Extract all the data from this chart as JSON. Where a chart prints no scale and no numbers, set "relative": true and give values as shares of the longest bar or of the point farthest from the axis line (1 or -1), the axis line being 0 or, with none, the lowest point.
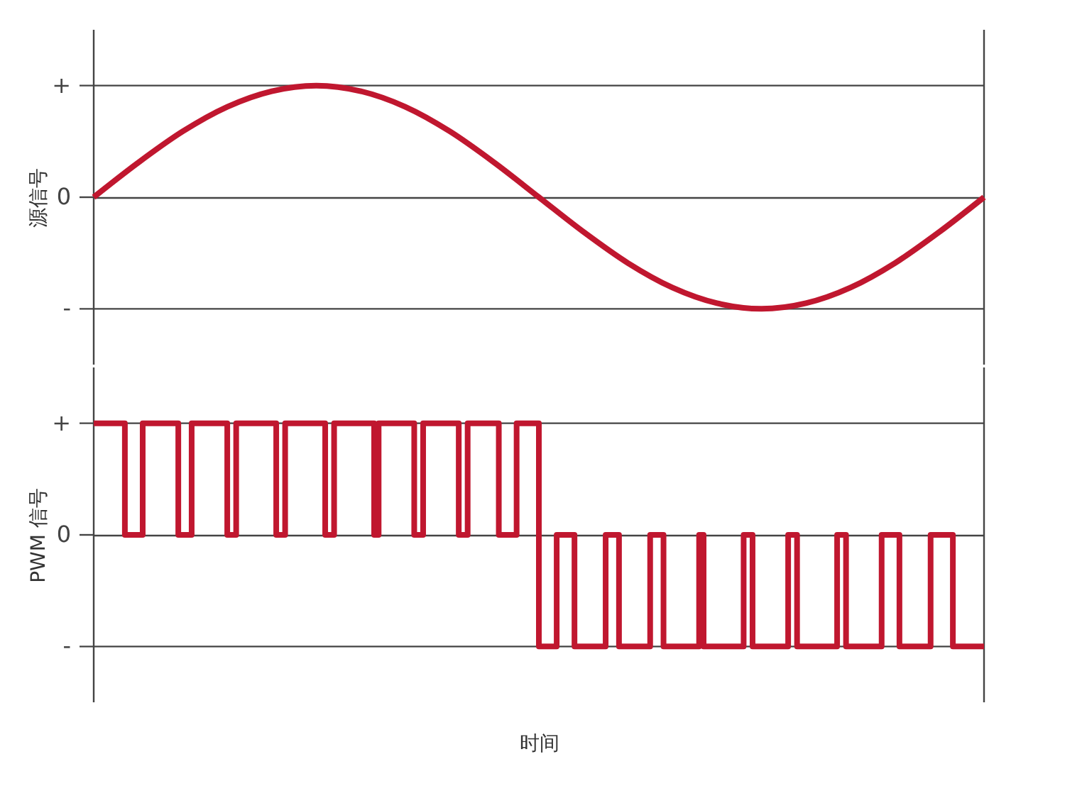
{
  "chart_data": [
    {
      "type": "line",
      "ylabel": "源信号",
      "relative": true,
      "grid": "y",
      "marker": "none",
      "line_style": "solid",
      "categories": [
        null,
        null,
        null,
        null,
        null,
        null,
        null,
        null,
        null,
        null,
        null,
        null,
        null,
        null,
        null,
        null,
        null,
        null,
        null,
        null,
        null
      ],
      "annotations": [
        "+",
        "0",
        "-"
      ],
      "series": [
        {
          "color": "#c0172f",
          "values": [
            0,
            0.31,
            0.59,
            0.81,
            0.95,
            1,
            0.95,
            0.81,
            0.59,
            0.31,
            0,
            -0.31,
            -0.59,
            -0.81,
            -0.95,
            -1,
            -0.95,
            -0.81,
            -0.59,
            -0.31,
            0
          ]
        }
      ]
    },
    {
      "type": "step",
      "ylabel": "PWM 信号",
      "xlabel": "时间",
      "relative": true,
      "grid": "y",
      "marker": "none",
      "line_style": "solid",
      "categories": [
        null,
        null,
        null,
        null,
        null,
        null,
        null,
        null,
        null,
        null,
        null,
        null,
        null,
        null,
        null,
        null,
        null,
        null,
        null,
        null,
        null,
        null,
        null,
        null,
        null,
        null,
        null,
        null,
        null,
        null,
        null,
        null,
        null,
        null,
        null,
        null,
        null,
        null,
        null,
        null,
        null,
        null,
        null,
        null,
        null,
        null,
        null,
        null,
        null,
        null,
        null,
        null,
        null,
        null,
        null,
        null,
        null,
        null,
        null,
        null,
        null,
        null,
        null,
        null,
        null,
        null,
        null,
        null,
        null,
        null,
        null,
        null,
        null,
        null,
        null,
        null,
        null,
        null,
        null,
        null,
        null,
        null,
        null,
        null,
        null,
        null,
        null,
        null,
        null,
        null,
        null,
        null,
        null,
        null,
        null,
        null,
        null,
        null,
        null,
        null,
        null,
        null,
        null,
        null,
        null,
        null,
        null,
        null,
        null,
        null,
        null,
        null,
        null,
        null,
        null,
        null,
        null,
        null,
        null,
        null,
        null,
        null,
        null,
        null,
        null,
        null,
        null,
        null,
        null,
        null,
        null,
        null,
        null,
        null,
        null,
        null,
        null,
        null,
        null,
        null,
        null,
        null,
        null,
        null,
        null,
        null,
        null,
        null,
        null,
        null,
        null,
        null,
        null,
        null,
        null,
        null,
        null,
        null,
        null,
        null,
        null,
        null,
        null,
        null,
        null,
        null,
        null,
        null,
        null,
        null,
        null,
        null,
        null,
        null,
        null,
        null,
        null,
        null,
        null,
        null,
        null,
        null,
        null,
        null,
        null,
        null,
        null,
        null,
        null,
        null,
        null,
        null,
        null,
        null,
        null,
        null,
        null,
        null,
        null,
        null,
        null
      ],
      "annotations": [
        "+",
        "0",
        "-"
      ],
      "series": [
        {
          "color": "#c0172f",
          "values": [
            1,
            1,
            1,
            1,
            1,
            1,
            1,
            0,
            0,
            0,
            0,
            1,
            1,
            1,
            1,
            1,
            1,
            1,
            1,
            0,
            0,
            0,
            1,
            1,
            1,
            1,
            1,
            1,
            1,
            1,
            0,
            0,
            1,
            1,
            1,
            1,
            1,
            1,
            1,
            1,
            1,
            0,
            0,
            1,
            1,
            1,
            1,
            1,
            1,
            1,
            1,
            1,
            0,
            0,
            1,
            1,
            1,
            1,
            1,
            1,
            1,
            1,
            1,
            0,
            1,
            1,
            1,
            1,
            1,
            1,
            1,
            1,
            0,
            0,
            1,
            1,
            1,
            1,
            1,
            1,
            1,
            1,
            0,
            0,
            1,
            1,
            1,
            1,
            1,
            1,
            1,
            0,
            0,
            0,
            0,
            1,
            1,
            1,
            1,
            1,
            -1,
            -1,
            -1,
            -1,
            0,
            0,
            0,
            0,
            -1,
            -1,
            -1,
            -1,
            -1,
            -1,
            -1,
            0,
            0,
            0,
            -1,
            -1,
            -1,
            -1,
            -1,
            -1,
            -1,
            0,
            0,
            0,
            -1,
            -1,
            -1,
            -1,
            -1,
            -1,
            -1,
            -1,
            0,
            -1,
            -1,
            -1,
            -1,
            -1,
            -1,
            -1,
            -1,
            -1,
            0,
            0,
            -1,
            -1,
            -1,
            -1,
            -1,
            -1,
            -1,
            -1,
            0,
            0,
            -1,
            -1,
            -1,
            -1,
            -1,
            -1,
            -1,
            -1,
            -1,
            0,
            0,
            -1,
            -1,
            -1,
            -1,
            -1,
            -1,
            -1,
            -1,
            0,
            0,
            0,
            0,
            -1,
            -1,
            -1,
            -1,
            -1,
            -1,
            -1,
            0,
            0,
            0,
            0,
            0,
            -1,
            -1,
            -1,
            -1,
            -1,
            -1,
            -1,
            -1
          ]
        }
      ]
    }
  ]
}
